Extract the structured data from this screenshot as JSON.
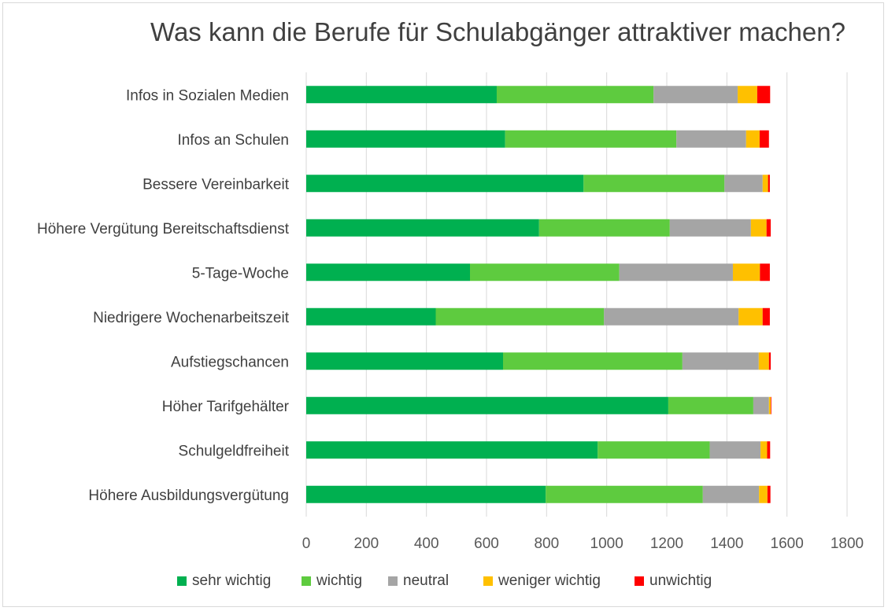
{
  "chart_data": {
    "type": "bar",
    "orientation": "horizontal",
    "stacked": true,
    "title": "Was kann die Berufe für Schulabgänger attraktiver machen?",
    "xlabel": "",
    "ylabel": "",
    "xlim": [
      0,
      1800
    ],
    "x_ticks": [
      0,
      200,
      400,
      600,
      800,
      1000,
      1200,
      1400,
      1600,
      1800
    ],
    "grid": true,
    "legend_position": "bottom",
    "categories": [
      "Infos in Sozialen Medien",
      "Infos an Schulen",
      "Bessere Vereinbarkeit ",
      "Höhere Vergütung Bereitschaftsdienst",
      "5-Tage-Woche",
      "Niedrigere Wochenarbeitszeit",
      "Aufstiegschancen",
      "Höher Tarifgehälter",
      "Schulgeldfreiheit",
      "Höhere Ausbildungsvergütung"
    ],
    "series": [
      {
        "name": "sehr wichtig",
        "color": "#00b050",
        "values": [
          634,
          662,
          923,
          775,
          545,
          431,
          655,
          1205,
          970,
          797
        ]
      },
      {
        "name": "wichtig",
        "color": "#5ecb3f",
        "values": [
          522,
          570,
          469,
          435,
          497,
          560,
          597,
          283,
          373,
          523
        ]
      },
      {
        "name": "neutral",
        "color": "#a5a5a5",
        "values": [
          280,
          232,
          127,
          270,
          378,
          448,
          254,
          52,
          169,
          187
        ]
      },
      {
        "name": "weniger wichtig",
        "color": "#ffc000",
        "values": [
          65,
          45,
          18,
          52,
          90,
          80,
          34,
          6,
          22,
          28
        ]
      },
      {
        "name": "unwichtig",
        "color": "#ff0000",
        "values": [
          43,
          31,
          6,
          14,
          33,
          24,
          6,
          2,
          10,
          10
        ]
      }
    ]
  }
}
